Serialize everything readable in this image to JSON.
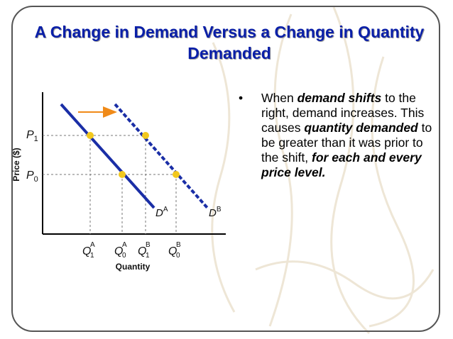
{
  "slide": {
    "title": "A Change in Demand Versus a Change in Quantity Demanded",
    "bullet": {
      "marker": "•",
      "segments": [
        {
          "text": "When ",
          "bold": false
        },
        {
          "text": "demand shifts",
          "bold": true
        },
        {
          "text": " to the right, demand increases. This causes ",
          "bold": false
        },
        {
          "text": "quantity demanded",
          "bold": true
        },
        {
          "text": " to be greater than it was prior to the shift, ",
          "bold": false
        },
        {
          "text": "for each and every price level.",
          "bold": true
        }
      ]
    }
  },
  "diagram": {
    "y_axis_label": "Price ($)",
    "x_axis_label": "Quantity",
    "price_levels": [
      {
        "main": "P",
        "sub": "1"
      },
      {
        "main": "P",
        "sub": "0"
      }
    ],
    "quantity_ticks": [
      {
        "main": "Q",
        "sup": "A",
        "sub": "1"
      },
      {
        "main": "Q",
        "sup": "A",
        "sub": "0"
      },
      {
        "main": "Q",
        "sup": "B",
        "sub": "1"
      },
      {
        "main": "Q",
        "sup": "B",
        "sub": "0"
      }
    ],
    "curves": [
      {
        "main": "D",
        "sup": "A",
        "style": "solid"
      },
      {
        "main": "D",
        "sup": "B",
        "style": "dashed"
      }
    ],
    "colors": {
      "demand_curve": "#1a2ea6",
      "points": "#f2c81e",
      "shift_arrow": "#f08a18",
      "guides": "#777777",
      "axis": "#000000",
      "title": "#0a1fa8"
    }
  }
}
